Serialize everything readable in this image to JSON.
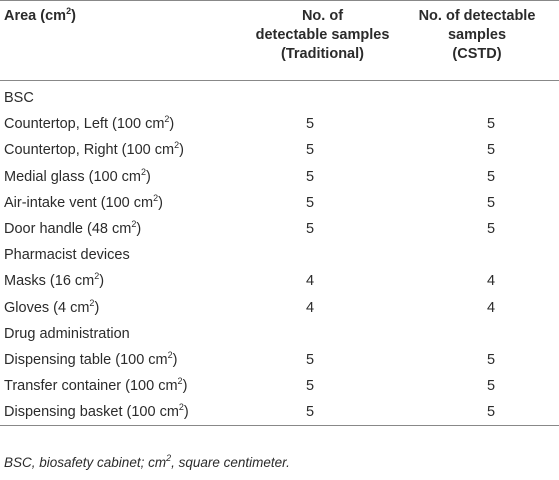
{
  "table": {
    "headers": {
      "area": "Area (cm",
      "area_sup": "2",
      "area_close": ")",
      "traditional_line1": "No. of",
      "traditional_line2": "detectable samples",
      "traditional_line3": "(Traditional)",
      "cstd_line1": "No. of detectable",
      "cstd_line2": "samples",
      "cstd_line3": "(CSTD)"
    },
    "rows": [
      {
        "area": "BSC",
        "sup": "",
        "close": "",
        "traditional": "",
        "cstd": ""
      },
      {
        "area": "Countertop, Left (100 cm",
        "sup": "2",
        "close": ")",
        "traditional": "5",
        "cstd": "5"
      },
      {
        "area": "Countertop, Right (100 cm",
        "sup": "2",
        "close": ")",
        "traditional": "5",
        "cstd": "5"
      },
      {
        "area": "Medial glass (100 cm",
        "sup": "2",
        "close": ")",
        "traditional": "5",
        "cstd": "5"
      },
      {
        "area": "Air-intake vent (100 cm",
        "sup": "2",
        "close": ")",
        "traditional": "5",
        "cstd": "5"
      },
      {
        "area": "Door handle (48 cm",
        "sup": "2",
        "close": ")",
        "traditional": "5",
        "cstd": "5"
      },
      {
        "area": "Pharmacist devices",
        "sup": "",
        "close": "",
        "traditional": "",
        "cstd": ""
      },
      {
        "area": "Masks (16 cm",
        "sup": "2",
        "close": ")",
        "traditional": "4",
        "cstd": "4"
      },
      {
        "area": "Gloves (4 cm",
        "sup": "2",
        "close": ")",
        "traditional": "4",
        "cstd": "4"
      },
      {
        "area": "Drug administration",
        "sup": "",
        "close": "",
        "traditional": "",
        "cstd": ""
      },
      {
        "area": "Dispensing table (100 cm",
        "sup": "2",
        "close": ")",
        "traditional": "5",
        "cstd": "5"
      },
      {
        "area": "Transfer container (100 cm",
        "sup": "2",
        "close": ")",
        "traditional": "5",
        "cstd": "5"
      },
      {
        "area": "Dispensing basket (100 cm",
        "sup": "2",
        "close": ")",
        "traditional": "5",
        "cstd": "5"
      }
    ]
  },
  "footnote": {
    "part1": "BSC, biosafety cabinet; cm",
    "sup": "2",
    "part2": ", square centimeter."
  }
}
